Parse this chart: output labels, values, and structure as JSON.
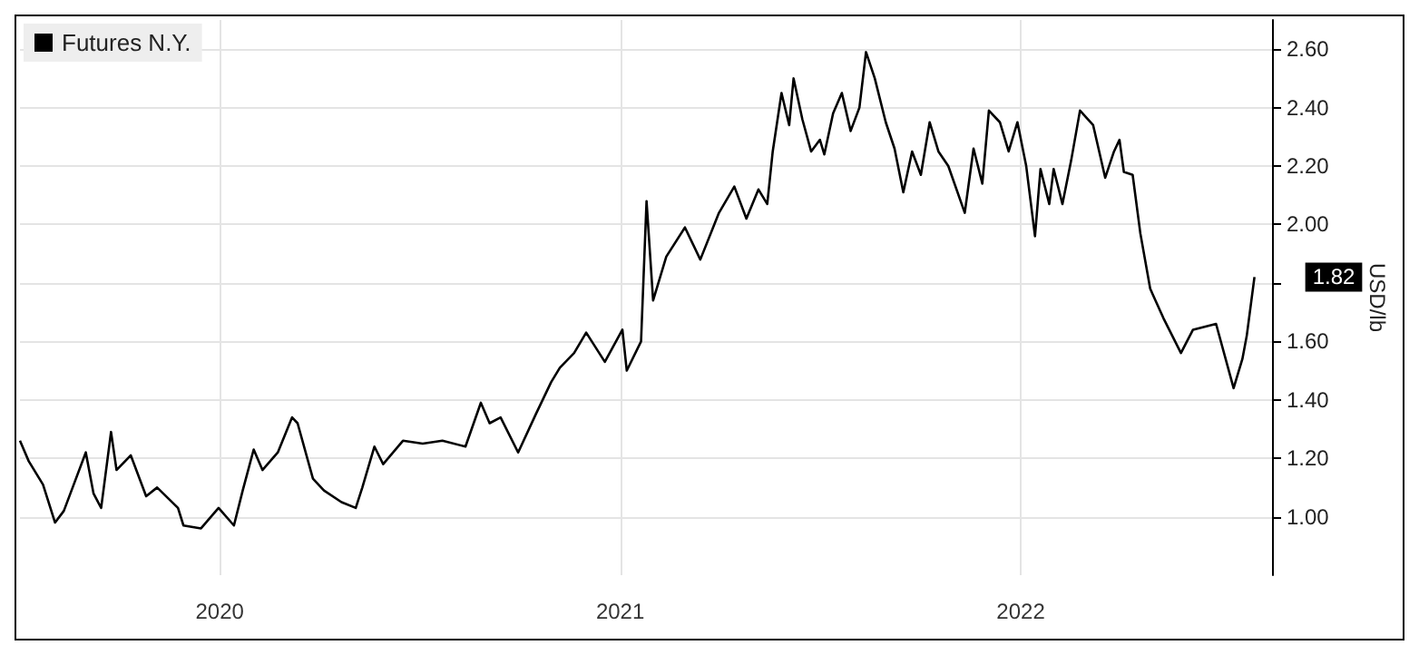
{
  "chart_data": {
    "type": "line",
    "ylabel": "USD/lb",
    "legend": "top left",
    "grid": true,
    "xlim": [
      "2020-01-01",
      "2023-02-15"
    ],
    "xticks": [
      {
        "value": "2020-07-01",
        "label": "2020"
      },
      {
        "value": "2021-07-01",
        "label": "2021"
      },
      {
        "value": "2022-07-01",
        "label": "2022"
      }
    ],
    "ylim": [
      0.8,
      2.7
    ],
    "yticks": [
      {
        "value": 1,
        "label": "1.00"
      },
      {
        "value": 1.2,
        "label": "1.20"
      },
      {
        "value": 1.4,
        "label": "1.40"
      },
      {
        "value": 1.6,
        "label": "1.60"
      },
      {
        "value": 1.8,
        "label": null
      },
      {
        "value": 2,
        "label": "2.00"
      },
      {
        "value": 2.2,
        "label": "2.20"
      },
      {
        "value": 2.4,
        "label": "2.40"
      },
      {
        "value": 2.6,
        "label": "2.60"
      }
    ],
    "annotations": [
      {
        "text": "1.82",
        "x": "2023-01-30",
        "y": 1.82
      }
    ],
    "series": [
      {
        "name": "Futures N.Y.",
        "color": "#000000",
        "x": [
          "2020-01-01",
          "2020-01-09",
          "2020-01-22",
          "2020-02-02",
          "2020-02-10",
          "2020-02-18",
          "2020-03-01",
          "2020-03-08",
          "2020-03-15",
          "2020-03-24",
          "2020-03-29",
          "2020-04-11",
          "2020-04-25",
          "2020-05-05",
          "2020-05-24",
          "2020-05-29",
          "2020-06-14",
          "2020-06-30",
          "2020-07-14",
          "2020-07-22",
          "2020-08-01",
          "2020-08-09",
          "2020-08-23",
          "2020-09-05",
          "2020-09-10",
          "2020-09-24",
          "2020-10-04",
          "2020-10-20",
          "2020-11-02",
          "2020-11-08",
          "2020-11-19",
          "2020-11-27",
          "2020-12-15",
          "2021-01-02",
          "2021-01-20",
          "2021-02-10",
          "2021-02-24",
          "2021-03-04",
          "2021-03-14",
          "2021-03-30",
          "2021-04-15",
          "2021-04-29",
          "2021-05-07",
          "2021-05-20",
          "2021-05-31",
          "2021-06-17",
          "2021-07-03",
          "2021-07-07",
          "2021-07-20",
          "2021-07-25",
          "2021-07-31",
          "2021-08-12",
          "2021-08-29",
          "2021-09-12",
          "2021-09-29",
          "2021-10-13",
          "2021-10-24",
          "2021-11-04",
          "2021-11-12",
          "2021-11-17",
          "2021-11-25",
          "2021-12-02",
          "2021-12-06",
          "2021-12-14",
          "2021-12-22",
          "2021-12-30",
          "2022-01-03",
          "2022-01-11",
          "2022-01-19",
          "2022-01-27",
          "2022-02-04",
          "2022-02-10",
          "2022-02-18",
          "2022-02-28",
          "2022-03-08",
          "2022-03-16",
          "2022-03-24",
          "2022-04-01",
          "2022-04-09",
          "2022-04-17",
          "2022-04-26",
          "2022-05-11",
          "2022-05-19",
          "2022-05-27",
          "2022-06-02",
          "2022-06-12",
          "2022-06-20",
          "2022-06-28",
          "2022-07-06",
          "2022-07-14",
          "2022-07-19",
          "2022-07-27",
          "2022-07-31",
          "2022-08-08",
          "2022-08-16",
          "2022-08-24",
          "2022-09-05",
          "2022-09-16",
          "2022-09-24",
          "2022-09-29",
          "2022-10-03",
          "2022-10-11",
          "2022-10-18",
          "2022-10-27",
          "2022-11-08",
          "2022-11-24",
          "2022-12-05",
          "2022-12-26",
          "2023-01-11",
          "2023-01-19",
          "2023-01-23",
          "2023-01-30"
        ],
        "values": [
          1.26,
          1.19,
          1.11,
          0.98,
          1.02,
          1.1,
          1.22,
          1.08,
          1.03,
          1.29,
          1.16,
          1.21,
          1.07,
          1.1,
          1.03,
          0.97,
          0.96,
          1.03,
          0.97,
          1.09,
          1.23,
          1.16,
          1.22,
          1.34,
          1.32,
          1.13,
          1.09,
          1.05,
          1.03,
          1.1,
          1.24,
          1.18,
          1.26,
          1.25,
          1.26,
          1.24,
          1.39,
          1.32,
          1.34,
          1.22,
          1.35,
          1.46,
          1.51,
          1.56,
          1.63,
          1.53,
          1.64,
          1.5,
          1.6,
          2.08,
          1.74,
          1.89,
          1.99,
          1.88,
          2.04,
          2.13,
          2.02,
          2.12,
          2.07,
          2.25,
          2.45,
          2.34,
          2.5,
          2.36,
          2.25,
          2.29,
          2.24,
          2.38,
          2.45,
          2.32,
          2.4,
          2.59,
          2.5,
          2.35,
          2.26,
          2.11,
          2.25,
          2.17,
          2.35,
          2.25,
          2.2,
          2.04,
          2.26,
          2.14,
          2.39,
          2.35,
          2.25,
          2.35,
          2.2,
          1.96,
          2.19,
          2.07,
          2.19,
          2.07,
          2.22,
          2.39,
          2.34,
          2.16,
          2.25,
          2.29,
          2.18,
          2.17,
          1.97,
          1.78,
          1.68,
          1.56,
          1.64,
          1.66,
          1.44,
          1.54,
          1.62,
          1.82
        ]
      }
    ]
  }
}
